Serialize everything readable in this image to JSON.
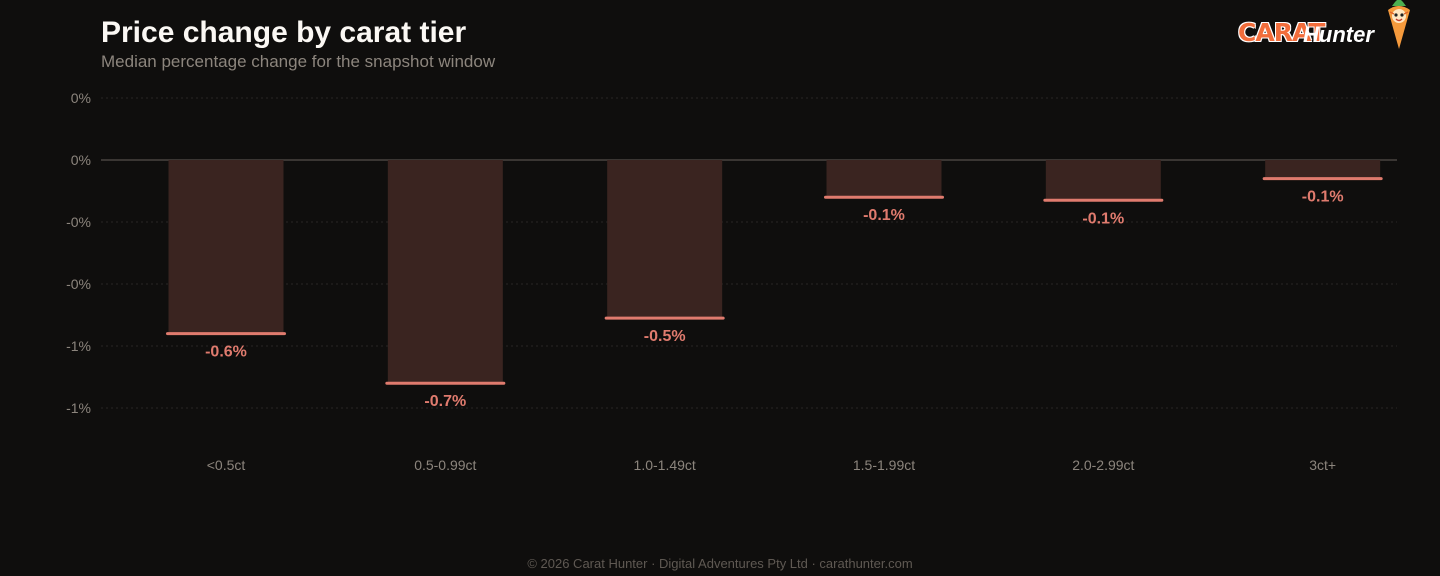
{
  "header": {
    "title": "Price change by carat tier",
    "subtitle": "Median percentage change for the snapshot window"
  },
  "brand": {
    "carat": "CARAT",
    "hunter": "Hunter",
    "mascot_icon": "carrot-mascot-icon"
  },
  "colors": {
    "background": "#0f0e0d",
    "bar_fill": "#3a2420",
    "bar_accent": "#e07b6e",
    "grid": "#2a2725",
    "zero_line": "#3a3633",
    "tick_text": "#8c857d"
  },
  "chart_data": {
    "type": "bar",
    "title": "Price change by carat tier",
    "subtitle": "Median percentage change for the snapshot window",
    "xlabel": "",
    "ylabel": "",
    "categories": [
      "<0.5ct",
      "0.5-0.99ct",
      "1.0-1.49ct",
      "1.5-1.99ct",
      "2.0-2.99ct",
      "3ct+"
    ],
    "values": [
      -0.56,
      -0.72,
      -0.51,
      -0.12,
      -0.13,
      -0.06
    ],
    "data_labels": [
      "-0.6%",
      "-0.7%",
      "-0.5%",
      "-0.1%",
      "-0.1%",
      "-0.1%"
    ],
    "ylim": [
      -0.8,
      0.2
    ],
    "y_ticks": [
      0.2,
      0.0,
      -0.2,
      -0.4,
      -0.6,
      -0.8
    ],
    "y_tick_labels": [
      "0%",
      "0%",
      "-0%",
      "-0%",
      "-1%",
      "-1%"
    ],
    "grid": true,
    "legend": "none"
  },
  "footer": {
    "text": "© 2026 Carat Hunter · Digital Adventures Pty Ltd · carathunter.com"
  }
}
